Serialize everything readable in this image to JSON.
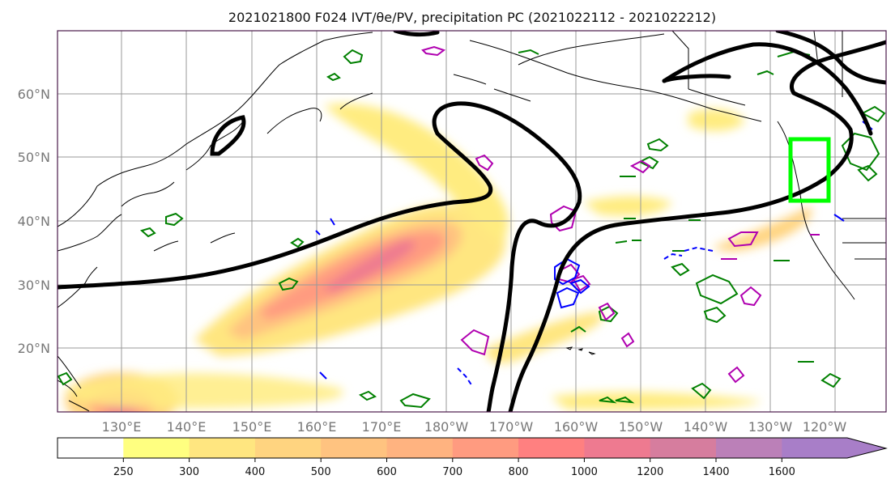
{
  "title": "2021021800 F024 IVT/θe/PV, precipitation PC (2021022112 - 2021022212)",
  "map": {
    "lon_labels": [
      "130°E",
      "140°E",
      "150°E",
      "160°E",
      "170°E",
      "180°W",
      "170°W",
      "160°W",
      "150°W",
      "140°W",
      "130°W",
      "120°W"
    ],
    "lat_labels": [
      "60°N",
      "50°N",
      "40°N",
      "30°N",
      "20°N"
    ],
    "colors": {
      "land_outline": "#000000",
      "gridline": "#999999",
      "theta_e_contour": "#000000",
      "pv_green": "#008000",
      "pv_magenta": "#b000b0",
      "pv_blue": "#0000ff",
      "target_box": "#00ff00"
    }
  },
  "colorbar": {
    "ticks": [
      "250",
      "300",
      "400",
      "500",
      "600",
      "700",
      "800",
      "1000",
      "1200",
      "1400",
      "1600"
    ],
    "colors": [
      "#ffffff",
      "#ffff80",
      "#ffe680",
      "#ffd480",
      "#ffc380",
      "#ffb380",
      "#ff9b80",
      "#ff8080",
      "#ee7a90",
      "#d67d9e",
      "#bb80b8",
      "#a87ec8"
    ]
  }
}
